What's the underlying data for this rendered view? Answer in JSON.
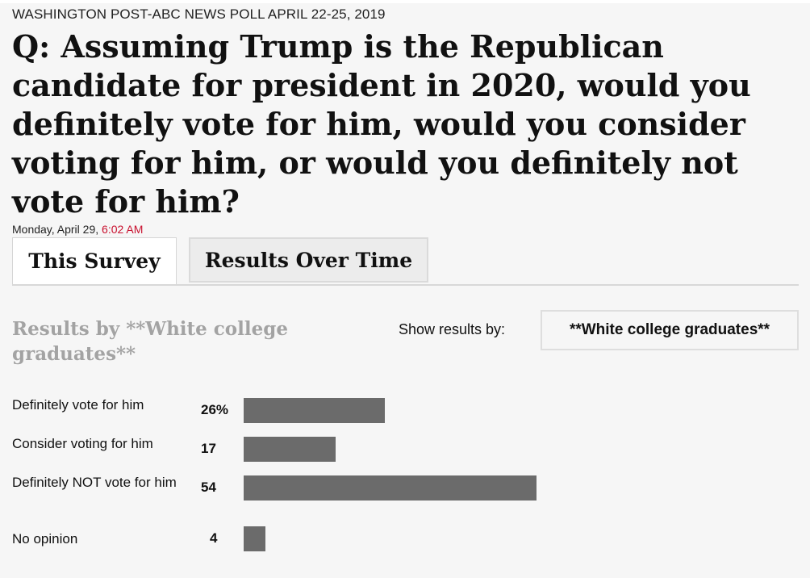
{
  "poll_source": "WASHINGTON POST-ABC NEWS POLL APRIL 22-25, 2019",
  "question": "Q: Assuming Trump is the Republican candidate for president in 2020, would you definitely vote for him, would you consider voting for him, or would you definitely not vote for him?",
  "timestamp": {
    "date": "Monday, April 29, ",
    "time": "6:02 AM"
  },
  "tabs": [
    {
      "label": "This Survey",
      "active": true
    },
    {
      "label": "Results Over Time",
      "active": false
    }
  ],
  "results_heading": "Results by **White college graduates**",
  "show_results_label": "Show results by:",
  "group_select": {
    "value": "**White college graduates**"
  },
  "colors": {
    "bar": "#6b6b6b",
    "timestamp_time": "#c8102e",
    "heading": "#a3a3a3",
    "background": "#f6f6f6"
  },
  "chart_data": {
    "type": "bar",
    "orientation": "horizontal",
    "categories": [
      "Definitely vote for him",
      "Consider voting for him",
      "Definitely NOT vote for him",
      "No opinion"
    ],
    "values": [
      26,
      17,
      54,
      4
    ],
    "value_labels": [
      "26%",
      "17",
      "54",
      "4"
    ],
    "unit": "%",
    "xlim": [
      0,
      100
    ],
    "grid": false,
    "legend": "none"
  }
}
